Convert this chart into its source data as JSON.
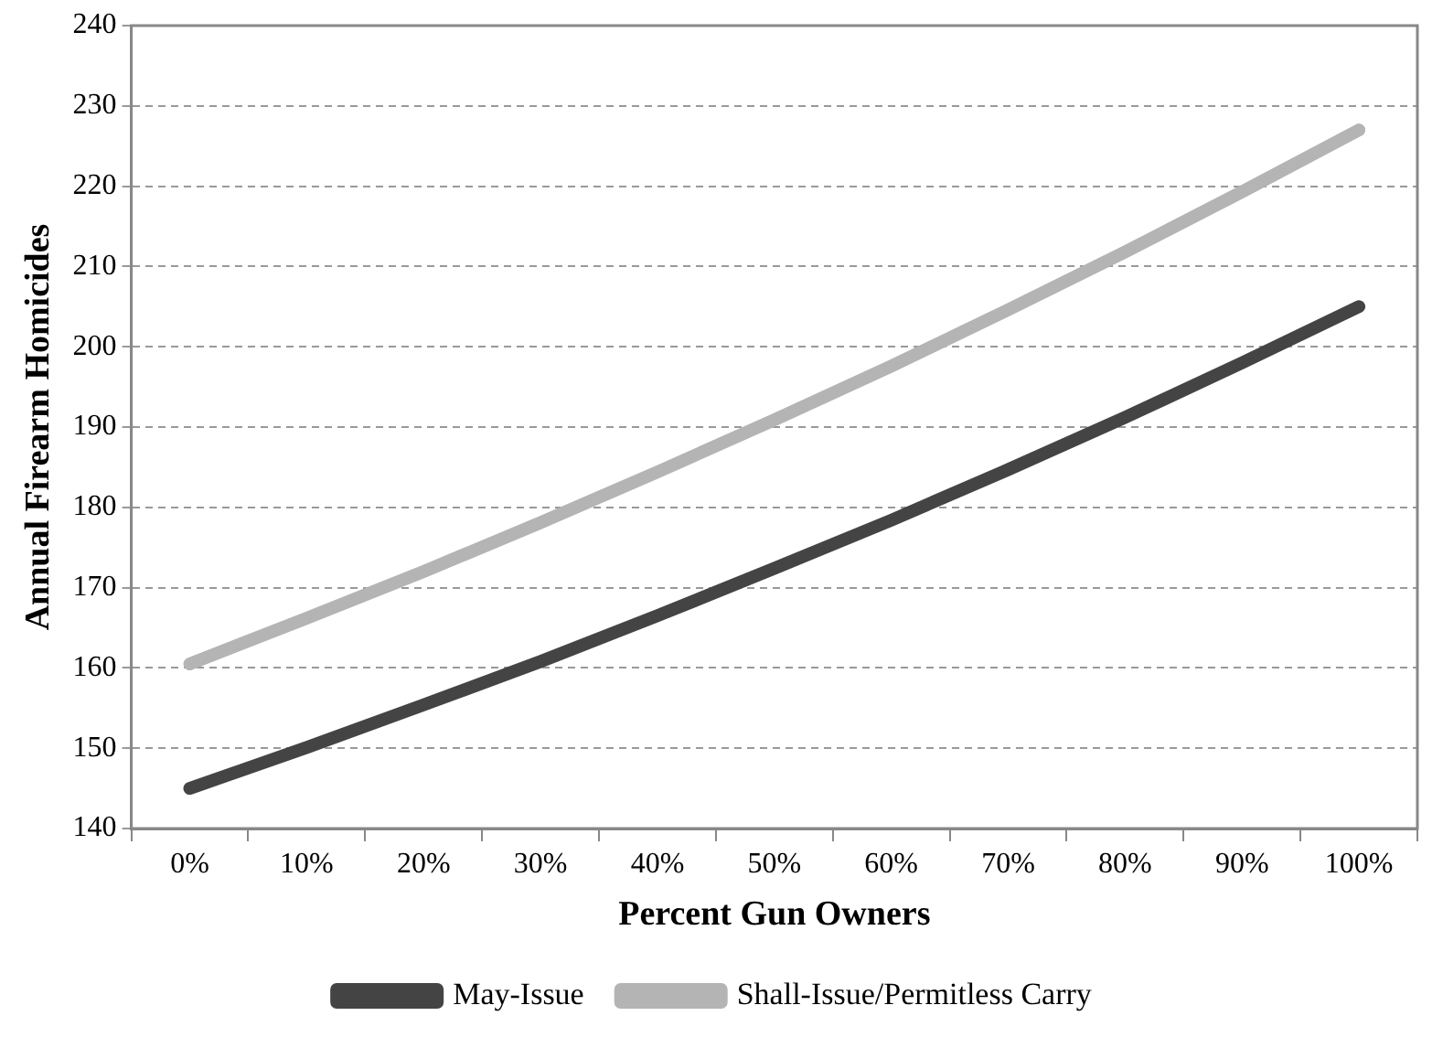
{
  "chart_data": {
    "type": "line",
    "xlabel": "Percent Gun Owners",
    "ylabel": "Annual Firearm Homicides",
    "categories": [
      "0%",
      "10%",
      "20%",
      "30%",
      "40%",
      "50%",
      "60%",
      "70%",
      "80%",
      "90%",
      "100%"
    ],
    "series": [
      {
        "name": "May-Issue",
        "color": "#444444",
        "values": [
          145,
          150.1,
          155.4,
          160.8,
          166.5,
          172.4,
          178.4,
          184.7,
          191.2,
          198.0,
          205.0
        ]
      },
      {
        "name": "Shall-Issue/Permitless Carry",
        "color": "#b4b4b4",
        "values": [
          160.5,
          166.2,
          172.0,
          178.1,
          184.4,
          190.9,
          197.6,
          204.6,
          211.8,
          219.3,
          227.0
        ]
      }
    ],
    "ylim": [
      140,
      240
    ],
    "yticks": [
      140,
      150,
      160,
      170,
      180,
      190,
      200,
      210,
      220,
      230,
      240
    ],
    "grid": "y",
    "legend": "bottom",
    "marker": "none",
    "line_style": "solid"
  }
}
